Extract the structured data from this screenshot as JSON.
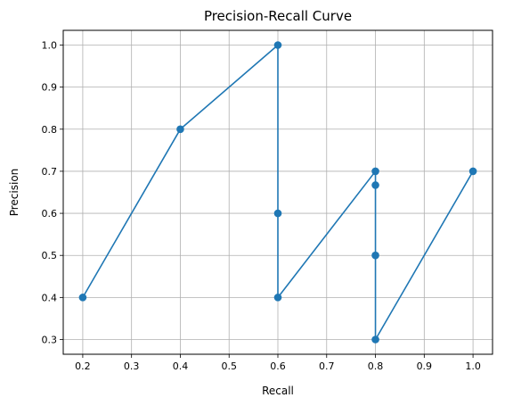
{
  "chart_data": {
    "type": "line",
    "title": "Precision-Recall Curve",
    "xlabel": "Recall",
    "ylabel": "Precision",
    "xlim": [
      0.16,
      1.04
    ],
    "ylim": [
      0.265,
      1.035
    ],
    "xticks": [
      0.2,
      0.3,
      0.4,
      0.5,
      0.6,
      0.7,
      0.8,
      0.9,
      1.0
    ],
    "xtick_labels": [
      "0.2",
      "0.3",
      "0.4",
      "0.5",
      "0.6",
      "0.7",
      "0.8",
      "0.9",
      "1.0"
    ],
    "yticks": [
      0.3,
      0.4,
      0.5,
      0.6,
      0.7,
      0.8,
      0.9,
      1.0
    ],
    "ytick_labels": [
      "0.3",
      "0.4",
      "0.5",
      "0.6",
      "0.7",
      "0.8",
      "0.9",
      "1.0"
    ],
    "grid": true,
    "marker": "circle",
    "color": "#1f77b4",
    "series": [
      {
        "x": [
          0.2,
          0.4,
          0.6,
          0.6,
          0.6,
          0.8,
          0.8,
          0.8,
          0.8,
          1.0
        ],
        "y": [
          0.4,
          0.8,
          1.0,
          0.6,
          0.4,
          0.7,
          0.667,
          0.5,
          0.3,
          0.7
        ]
      }
    ]
  }
}
